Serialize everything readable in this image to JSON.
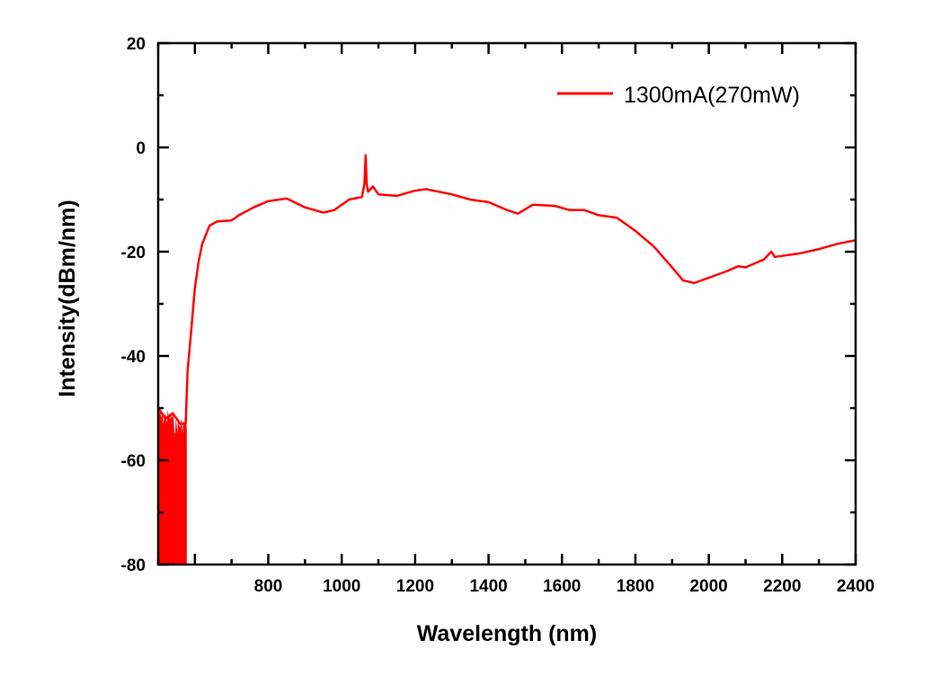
{
  "chart_data": {
    "type": "line",
    "title": "",
    "xlabel": "Wavelength (nm)",
    "ylabel": "Intensity(dBm/nm)",
    "xlim": [
      500,
      2400
    ],
    "ylim": [
      -80,
      20
    ],
    "xticks": [
      800,
      1000,
      1200,
      1400,
      1600,
      1800,
      2000,
      2200,
      2400
    ],
    "yticks": [
      20,
      0,
      -20,
      -40,
      -60,
      -80
    ],
    "grid": false,
    "legend_position": "top-right",
    "series": [
      {
        "name": "1300mA(270mW)",
        "color": "#ff0000",
        "noise_floor_region": {
          "x": [
            500,
            578
          ],
          "y_top": -50,
          "y_bottom": -80
        },
        "x": [
          500,
          520,
          540,
          560,
          575,
          580,
          590,
          600,
          610,
          620,
          640,
          660,
          700,
          720,
          760,
          800,
          850,
          900,
          950,
          980,
          1020,
          1055,
          1062,
          1065,
          1068,
          1072,
          1085,
          1100,
          1150,
          1200,
          1230,
          1300,
          1350,
          1400,
          1450,
          1480,
          1520,
          1580,
          1620,
          1660,
          1700,
          1750,
          1800,
          1850,
          1900,
          1930,
          1960,
          2000,
          2050,
          2080,
          2100,
          2150,
          2170,
          2180,
          2250,
          2300,
          2350,
          2400
        ],
        "y": [
          -50,
          -52,
          -51,
          -53,
          -53,
          -43,
          -35,
          -27,
          -22,
          -18.5,
          -15,
          -14.2,
          -14,
          -13,
          -11.5,
          -10.3,
          -9.8,
          -11.5,
          -12.5,
          -12,
          -10,
          -9.5,
          -7,
          -1.5,
          -7,
          -8.5,
          -7.5,
          -9,
          -9.3,
          -8.3,
          -8,
          -9,
          -10,
          -10.5,
          -12,
          -12.7,
          -11,
          -11.2,
          -12,
          -12,
          -13,
          -13.5,
          -16,
          -19,
          -23,
          -25.5,
          -26,
          -25,
          -23.7,
          -22.8,
          -23,
          -21.5,
          -20,
          -21,
          -20.3,
          -19.5,
          -18.5,
          -17.8
        ]
      }
    ]
  }
}
